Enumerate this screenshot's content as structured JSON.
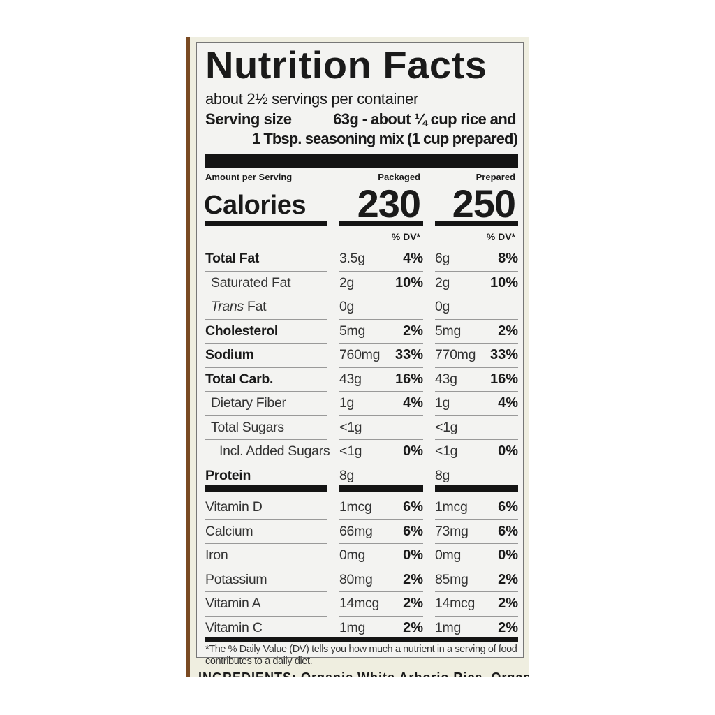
{
  "label": {
    "title": "Nutrition Facts",
    "servings": "about 2½ servings per container",
    "serving_size_label": "Serving size",
    "serving_size_line1": "63g - about ¼ cup rice and",
    "serving_size_line2": "1 Tbsp. seasoning mix (1 cup prepared)",
    "amount_per_serving": "Amount per Serving",
    "calories_label": "Calories",
    "columns": [
      {
        "header": "Packaged",
        "calories": "230",
        "dv_header": "% DV*"
      },
      {
        "header": "Prepared",
        "calories": "250",
        "dv_header": "% DV*"
      }
    ],
    "nutrients": [
      {
        "name": "Total Fat",
        "bold": true,
        "indent": 0,
        "pkg": "3.5g",
        "pkg_dv": "4%",
        "prep": "6g",
        "prep_dv": "8%"
      },
      {
        "name": "Saturated Fat",
        "bold": false,
        "indent": 1,
        "pkg": "2g",
        "pkg_dv": "10%",
        "prep": "2g",
        "prep_dv": "10%"
      },
      {
        "name": "Trans Fat",
        "bold": false,
        "indent": 1,
        "italic_prefix": "Trans",
        "pkg": "0g",
        "pkg_dv": "",
        "prep": "0g",
        "prep_dv": ""
      },
      {
        "name": "Cholesterol",
        "bold": true,
        "indent": 0,
        "pkg": "5mg",
        "pkg_dv": "2%",
        "prep": "5mg",
        "prep_dv": "2%"
      },
      {
        "name": "Sodium",
        "bold": true,
        "indent": 0,
        "pkg": "760mg",
        "pkg_dv": "33%",
        "prep": "770mg",
        "prep_dv": "33%"
      },
      {
        "name": "Total Carb.",
        "bold": true,
        "indent": 0,
        "pkg": "43g",
        "pkg_dv": "16%",
        "prep": "43g",
        "prep_dv": "16%"
      },
      {
        "name": "Dietary Fiber",
        "bold": false,
        "indent": 1,
        "pkg": "1g",
        "pkg_dv": "4%",
        "prep": "1g",
        "prep_dv": "4%"
      },
      {
        "name": "Total Sugars",
        "bold": false,
        "indent": 1,
        "pkg": "<1g",
        "pkg_dv": "",
        "prep": "<1g",
        "prep_dv": ""
      },
      {
        "name": "Incl. Added Sugars",
        "bold": false,
        "indent": 2,
        "pkg": "<1g",
        "pkg_dv": "0%",
        "prep": "<1g",
        "prep_dv": "0%"
      },
      {
        "name": "Protein",
        "bold": true,
        "indent": 0,
        "pkg": "8g",
        "pkg_dv": "",
        "prep": "8g",
        "prep_dv": ""
      }
    ],
    "vitamins": [
      {
        "name": "Vitamin D",
        "pkg": "1mcg",
        "pkg_dv": "6%",
        "prep": "1mcg",
        "prep_dv": "6%"
      },
      {
        "name": "Calcium",
        "pkg": "66mg",
        "pkg_dv": "6%",
        "prep": "73mg",
        "prep_dv": "6%"
      },
      {
        "name": "Iron",
        "pkg": "0mg",
        "pkg_dv": "0%",
        "prep": "0mg",
        "prep_dv": "0%"
      },
      {
        "name": "Potassium",
        "pkg": "80mg",
        "pkg_dv": "2%",
        "prep": "85mg",
        "prep_dv": "2%"
      },
      {
        "name": "Vitamin A",
        "pkg": "14mcg",
        "pkg_dv": "2%",
        "prep": "14mcg",
        "prep_dv": "2%"
      },
      {
        "name": "Vitamin C",
        "pkg": "1mg",
        "pkg_dv": "2%",
        "prep": "1mg",
        "prep_dv": "2%"
      }
    ],
    "footnote_line1": "*The % Daily Value (DV) tells you how much a nutrient in a serving of food",
    "footnote_line2": "contributes to a daily diet.",
    "ingredients_partial": "INGREDIENTS: Organic White Arborio Rice, Organic P"
  },
  "colors": {
    "ink": "#141414",
    "panel": "#efeee0",
    "label_bg": "#f3f3f1",
    "strip": "#7a4a22"
  }
}
